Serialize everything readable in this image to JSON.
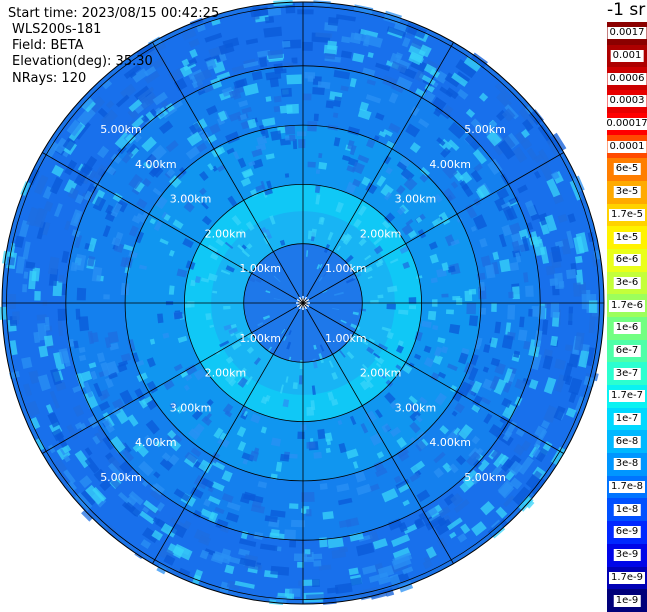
{
  "header": {
    "start_time": "Start time: 2023/08/15 00:42:25",
    "instrument": "WLS200s-181",
    "field": "Field: BETA",
    "elevation": "Elevation(deg): 35.30",
    "nrays": "NRays: 120"
  },
  "colorbar": {
    "unit": "-1 sr",
    "levels": [
      {
        "label": "0.0017",
        "color": "#8b0000"
      },
      {
        "label": "0.001",
        "color": "#ad0000"
      },
      {
        "label": "0.0006",
        "color": "#cc0000"
      },
      {
        "label": "0.0003",
        "color": "#e80000"
      },
      {
        "label": "0.00017",
        "color": "#ff0000"
      },
      {
        "label": "0.0001",
        "color": "#ff4a00"
      },
      {
        "label": "6e-5",
        "color": "#ff7e00"
      },
      {
        "label": "3e-5",
        "color": "#ffaa00"
      },
      {
        "label": "1.7e-5",
        "color": "#ffd200"
      },
      {
        "label": "1e-5",
        "color": "#fff200"
      },
      {
        "label": "6e-6",
        "color": "#eaff1a"
      },
      {
        "label": "3e-6",
        "color": "#c4ff3a"
      },
      {
        "label": "1.7e-6",
        "color": "#9cff5c"
      },
      {
        "label": "1e-6",
        "color": "#72ff82"
      },
      {
        "label": "6e-7",
        "color": "#4effa8"
      },
      {
        "label": "3e-7",
        "color": "#2bffd0"
      },
      {
        "label": "1.7e-7",
        "color": "#0af2f2"
      },
      {
        "label": "1e-7",
        "color": "#00d8ff"
      },
      {
        "label": "6e-8",
        "color": "#00b8ff"
      },
      {
        "label": "3e-8",
        "color": "#0096ff"
      },
      {
        "label": "1.7e-8",
        "color": "#0074ff"
      },
      {
        "label": "1e-8",
        "color": "#0050ff"
      },
      {
        "label": "6e-9",
        "color": "#0028ff"
      },
      {
        "label": "3e-9",
        "color": "#0006e8"
      },
      {
        "label": "1.7e-9",
        "color": "#0000b4"
      },
      {
        "label": "1e-9",
        "color": "#00007a"
      }
    ]
  },
  "ppi": {
    "range_rings": [
      "1.00km",
      "2.00km",
      "3.00km",
      "4.00km",
      "5.00km"
    ],
    "spoke_count": 12,
    "ring_fill_colors": [
      "#1e78ea",
      "#10c8f6",
      "#1096f0",
      "#1480ee",
      "#1870ec",
      "#1c74e8"
    ],
    "speckle_colors": [
      "#0a5ad8",
      "#2a90f4",
      "#38d4fa",
      "#1e6ee0"
    ]
  }
}
